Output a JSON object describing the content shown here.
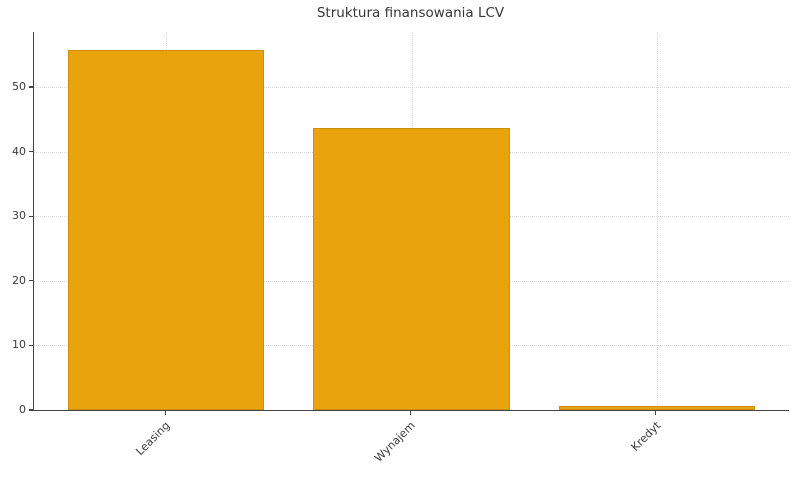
{
  "figure": {
    "background": "#ffffff"
  },
  "chart_data": {
    "type": "bar",
    "title": "Struktura finansowania LCV",
    "categories": [
      "Leasing",
      "Wynajem",
      "Kredyt"
    ],
    "values": [
      55.7,
      43.7,
      0.6
    ],
    "xlabel": "",
    "ylabel": "",
    "ylim": [
      0,
      58.5
    ],
    "yticks": [
      0,
      10,
      20,
      30,
      40,
      50
    ],
    "grid": {
      "horizontal": true,
      "vertical": true,
      "style": "dotted",
      "color": "#d9d9d9"
    },
    "legend_position": "none",
    "x_tick_rotation_deg": 45,
    "bar_color": "#E8A30D",
    "bar_edge_color": "#CE8F08",
    "axis_color": "#444444",
    "tick_label_color": "#3b3b3b",
    "title_color": "#363636"
  }
}
